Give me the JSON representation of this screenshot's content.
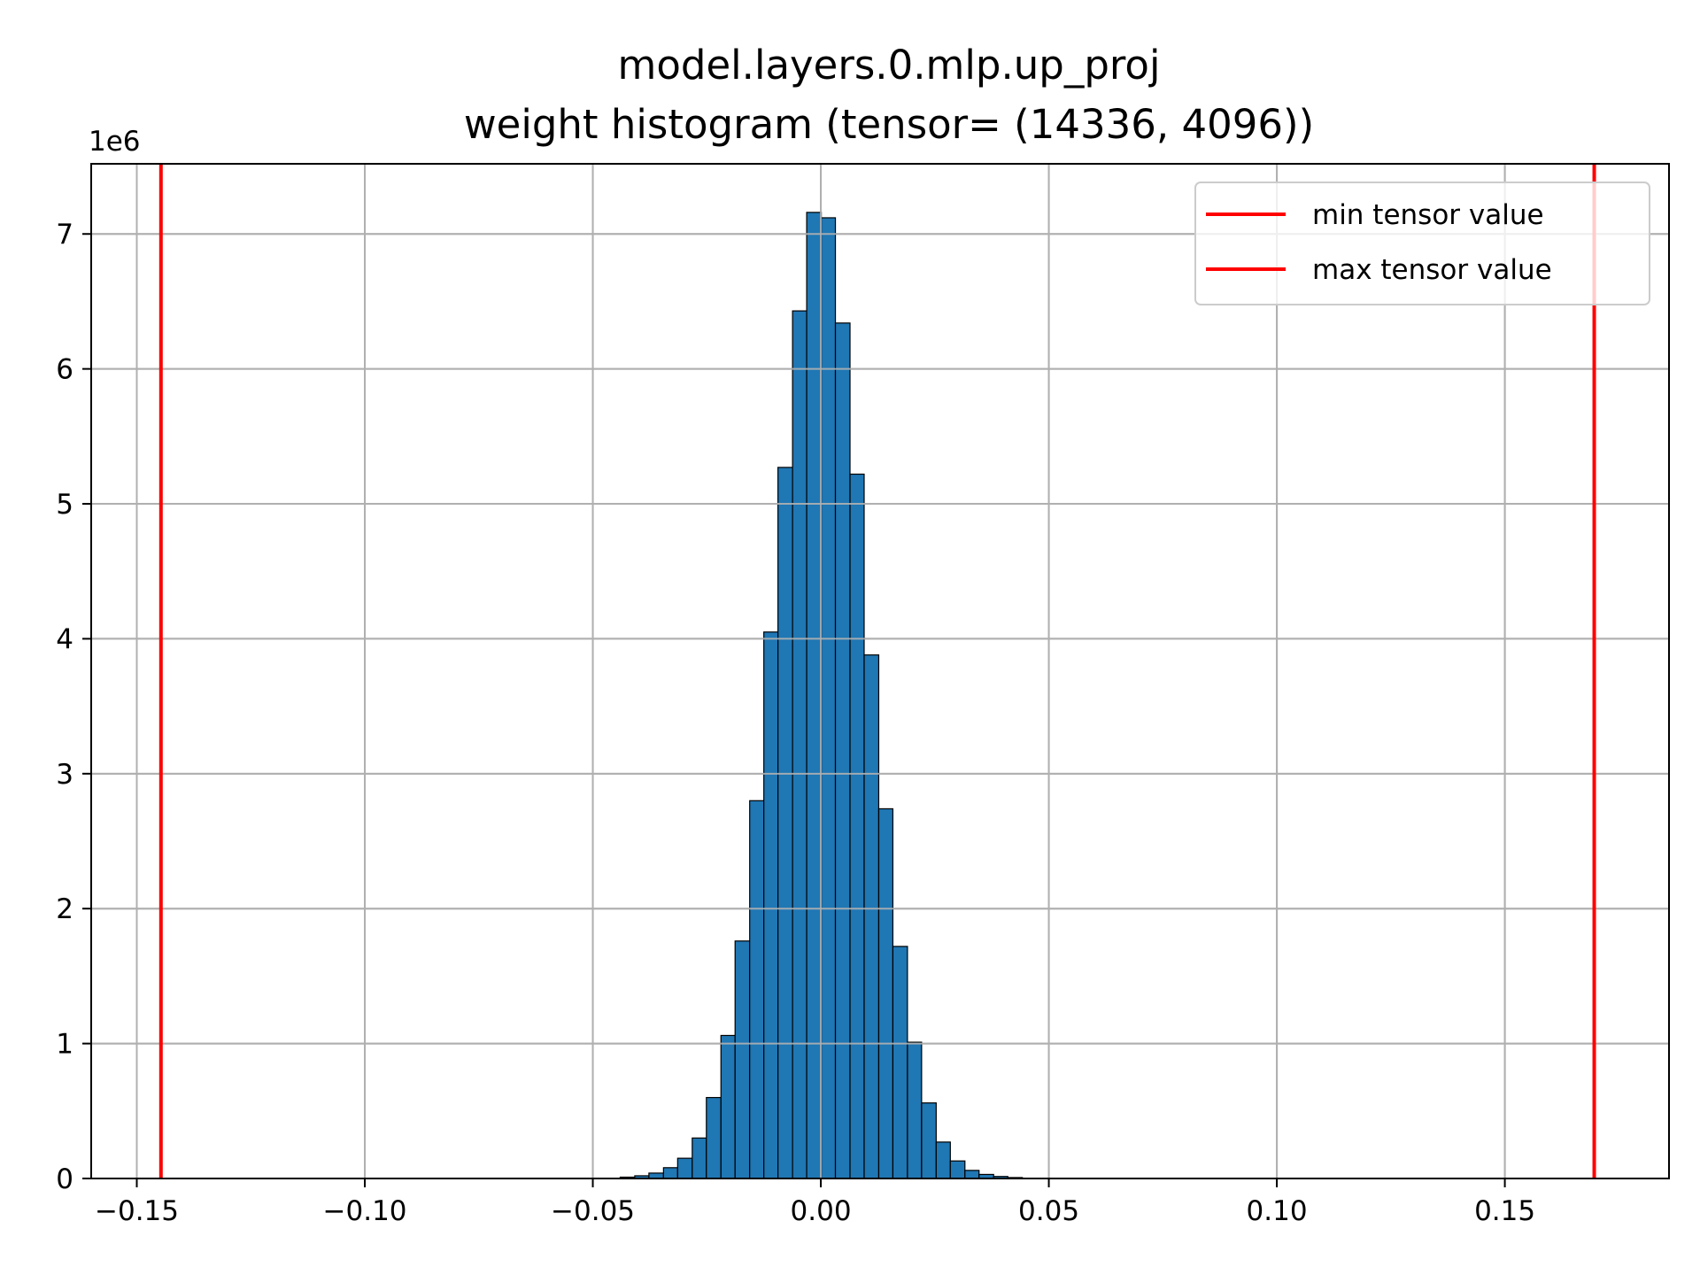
{
  "chart_data": {
    "type": "bar",
    "title_line1": "model.layers.0.mlp.up_proj",
    "title_line2": "weight histogram (tensor= (14336, 4096))",
    "xlabel": "",
    "ylabel": "",
    "y_offset_label": "1e6",
    "xlim": [
      -0.16,
      0.186
    ],
    "ylim": [
      0,
      7.52
    ],
    "grid": true,
    "legend_placement": "top-right",
    "xticks": [
      -0.15,
      -0.1,
      -0.05,
      0.0,
      0.05,
      0.1,
      0.15
    ],
    "xtick_labels": [
      "−0.15",
      "−0.10",
      "−0.05",
      "0.00",
      "0.05",
      "0.10",
      "0.15"
    ],
    "yticks": [
      0,
      1,
      2,
      3,
      4,
      5,
      6,
      7
    ],
    "ytick_labels": [
      "0",
      "1",
      "2",
      "3",
      "4",
      "5",
      "6",
      "7"
    ],
    "bins": {
      "edges": [
        -0.044,
        -0.0408,
        -0.0377,
        -0.0345,
        -0.0314,
        -0.0282,
        -0.0251,
        -0.0219,
        -0.0188,
        -0.0156,
        -0.0125,
        -0.0094,
        -0.0062,
        -0.0031,
        0.0001,
        0.0032,
        0.0064,
        0.0095,
        0.0127,
        0.0158,
        0.019,
        0.0221,
        0.0253,
        0.0284,
        0.0316,
        0.0347,
        0.0379,
        0.041,
        0.0442
      ],
      "values": [
        0.01,
        0.02,
        0.04,
        0.08,
        0.15,
        0.3,
        0.6,
        1.06,
        1.76,
        2.8,
        4.05,
        5.27,
        6.43,
        7.16,
        7.12,
        6.34,
        5.22,
        3.88,
        2.74,
        1.72,
        1.01,
        0.56,
        0.27,
        0.13,
        0.06,
        0.03,
        0.015,
        0.007
      ]
    },
    "vlines": [
      {
        "name": "min tensor value",
        "x": -0.1447,
        "color": "#ff0000"
      },
      {
        "name": "max tensor value",
        "x": 0.1696,
        "color": "#ff0000"
      }
    ],
    "colors": {
      "bar_fill": "#1f77b4",
      "bar_edge": "#000000",
      "grid": "#b0b0b0",
      "axes": "#000000"
    }
  }
}
